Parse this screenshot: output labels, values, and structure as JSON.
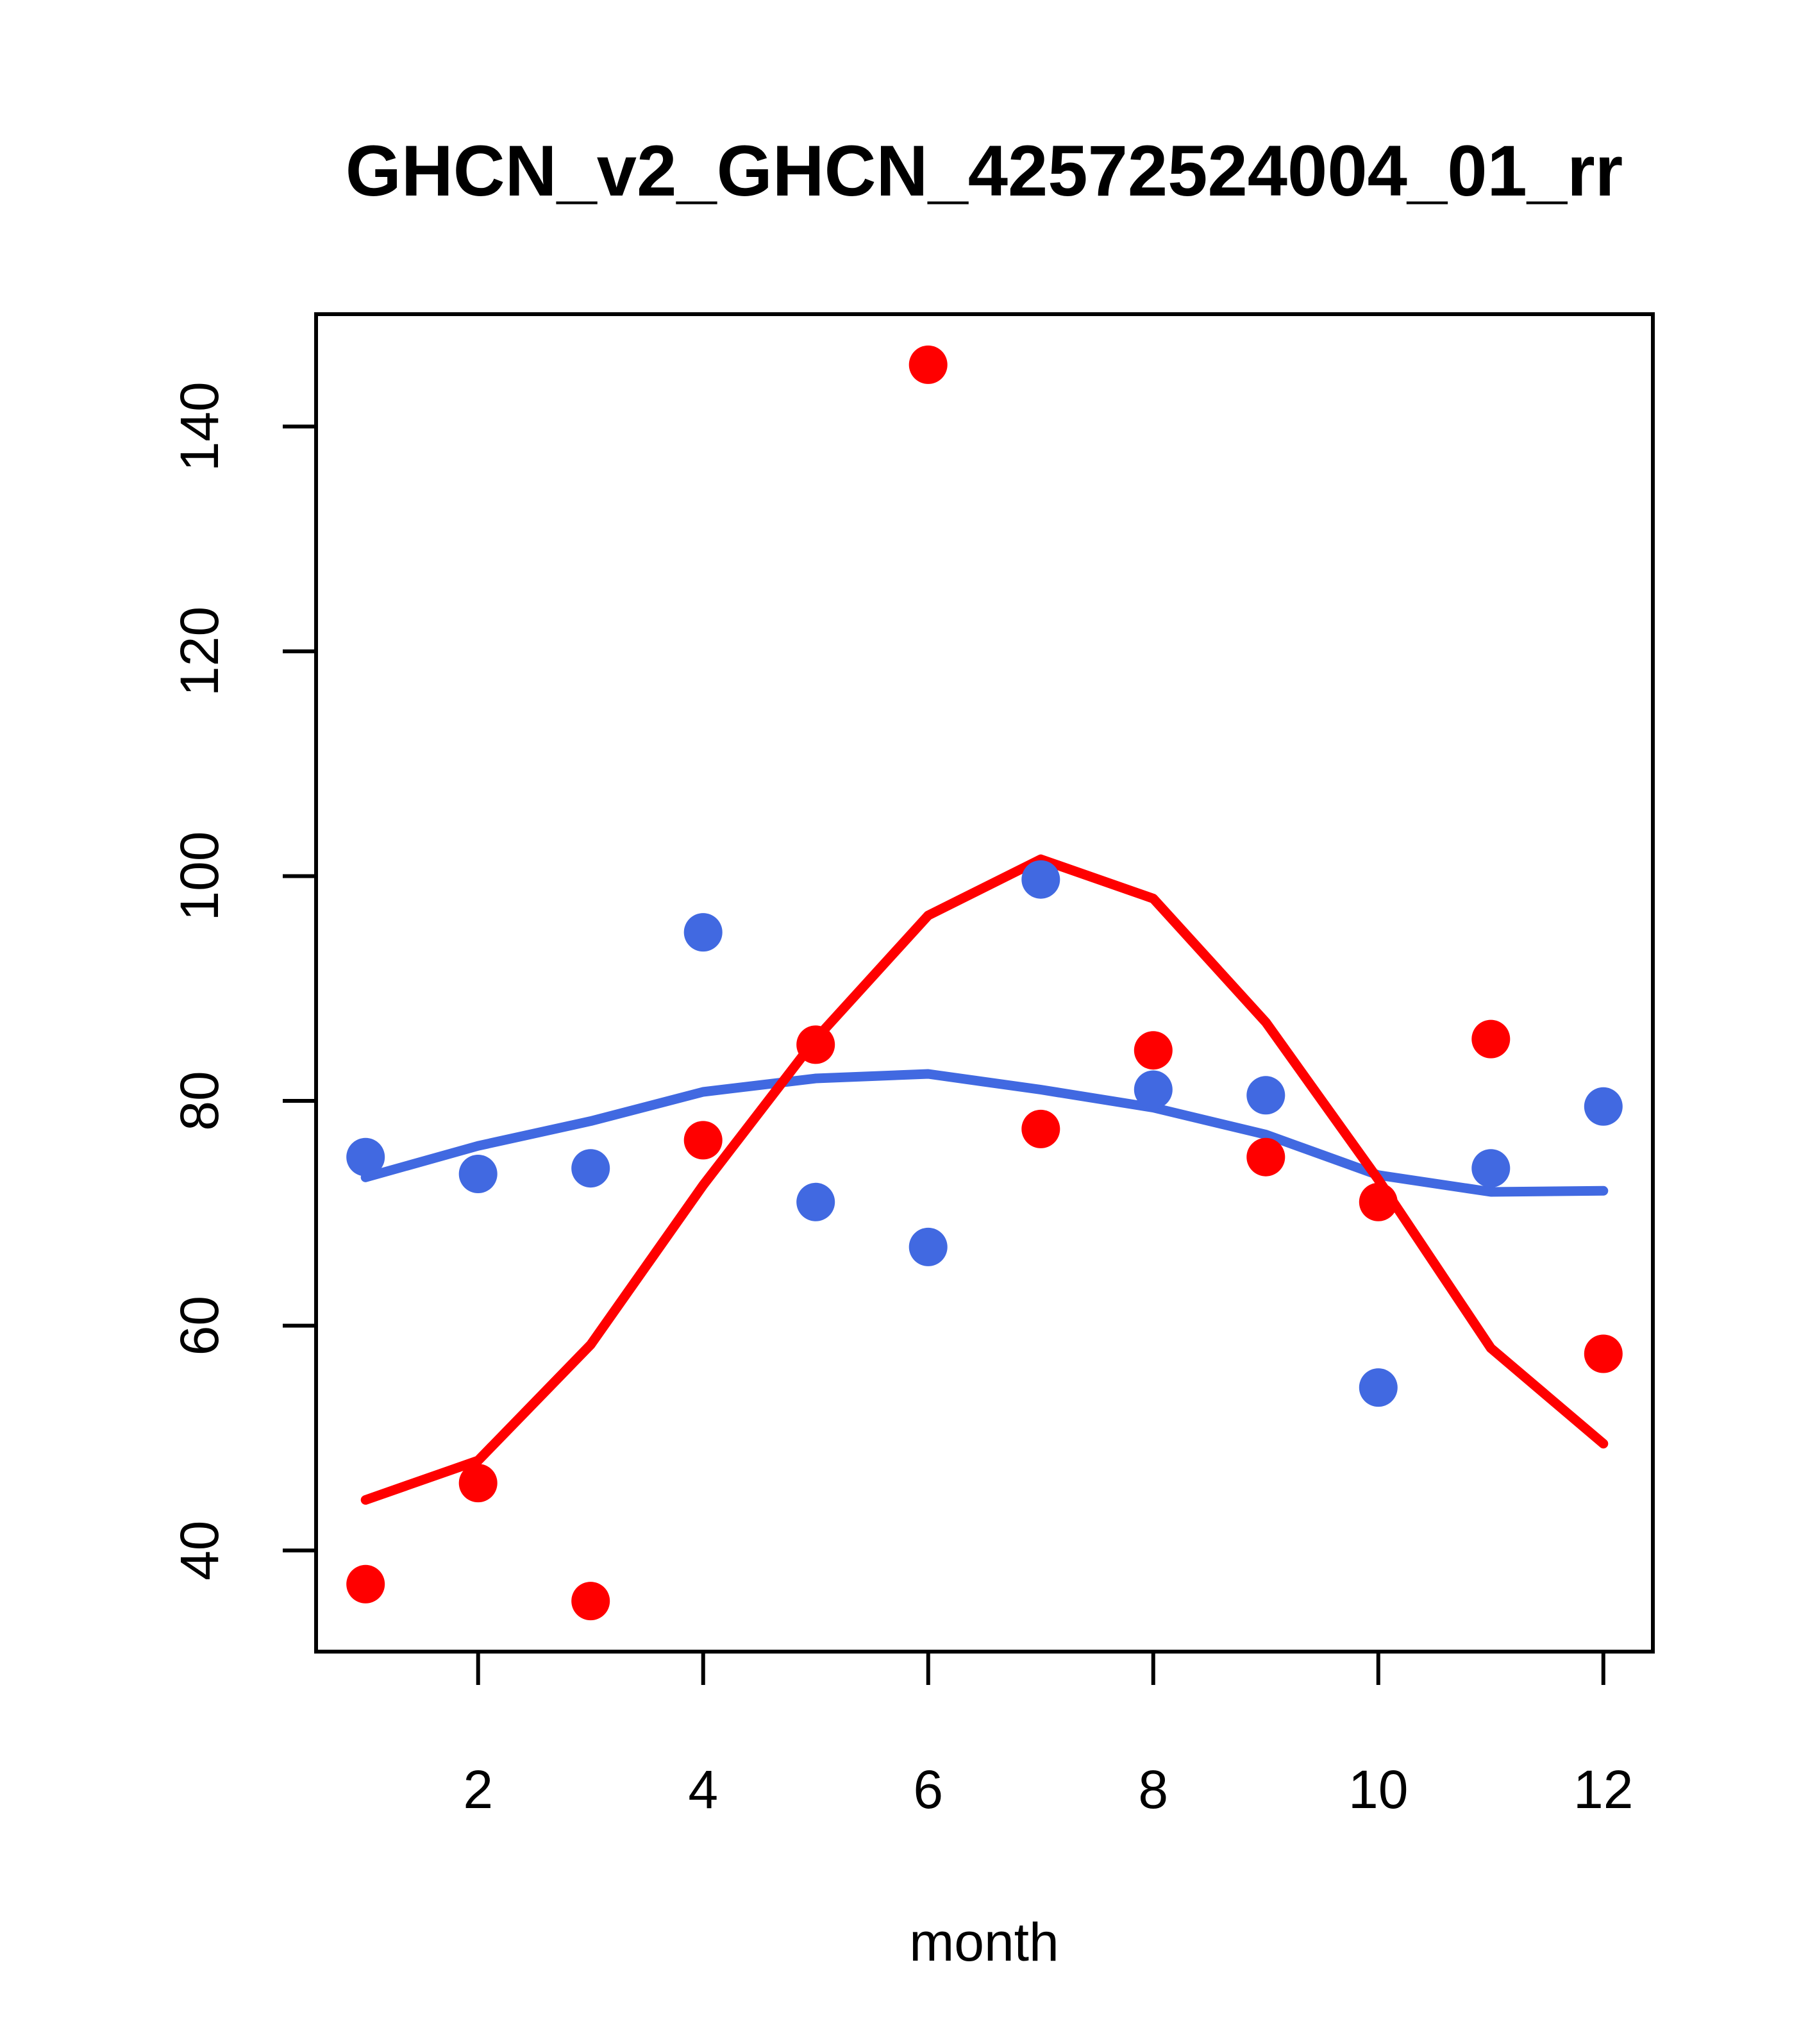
{
  "title": "GHCN_v2_GHCN_42572524004_01_rr",
  "chart_data": {
    "type": "scatter",
    "title": "GHCN_v2_GHCN_42572524004_01_rr",
    "xlabel": "month",
    "ylabel": "",
    "x": [
      1,
      2,
      3,
      4,
      5,
      6,
      7,
      8,
      9,
      10,
      11,
      12
    ],
    "x_ticks": [
      2,
      4,
      6,
      8,
      10,
      12
    ],
    "y_ticks": [
      40,
      60,
      80,
      100,
      120,
      140
    ],
    "xlim": [
      0.56,
      12.44
    ],
    "ylim": [
      31,
      150
    ],
    "grid": false,
    "legend_position": "none",
    "colors": {
      "red": "#FF0000",
      "blue": "#4169E1",
      "axis": "#000000"
    },
    "series": [
      {
        "name": "blue-lowess-line",
        "type": "line",
        "color": "#4169E1",
        "values": [
          73.2,
          76.0,
          78.2,
          80.8,
          82.0,
          82.4,
          81.0,
          79.4,
          77.0,
          73.4,
          71.9,
          72.0
        ]
      },
      {
        "name": "red-lowess-line",
        "type": "line",
        "color": "#FF0000",
        "values": [
          44.5,
          48.0,
          58.3,
          72.5,
          85.5,
          96.5,
          101.5,
          98.0,
          87.0,
          73.0,
          58.0,
          49.5
        ]
      },
      {
        "name": "red-points",
        "type": "points",
        "color": "#FF0000",
        "values": [
          37.0,
          46.0,
          35.5,
          76.5,
          85.0,
          145.5,
          77.5,
          84.5,
          75.0,
          71.0,
          85.5,
          57.5
        ]
      },
      {
        "name": "blue-points",
        "type": "points",
        "color": "#4169E1",
        "values": [
          75.0,
          73.5,
          74.0,
          95.0,
          71.0,
          67.0,
          99.7,
          81.0,
          80.5,
          54.5,
          74.0,
          79.5
        ]
      }
    ]
  }
}
